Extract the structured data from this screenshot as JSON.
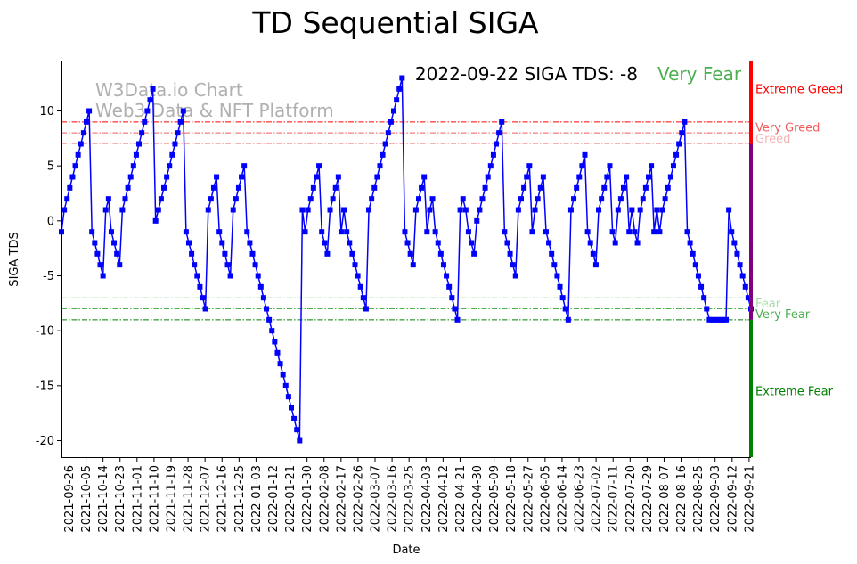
{
  "chart_data": {
    "type": "line",
    "title": "TD Sequential SIGA",
    "xlabel": "Date",
    "ylabel": "SIGA TDS",
    "ylim": [
      -21.5,
      14.5
    ],
    "yticks": [
      10,
      5,
      0,
      -5,
      -10,
      -15,
      -20
    ],
    "xticks": [
      "2021-09-26",
      "2021-10-05",
      "2021-10-14",
      "2021-10-23",
      "2021-11-01",
      "2021-11-10",
      "2021-11-19",
      "2021-11-28",
      "2021-12-07",
      "2021-12-16",
      "2021-12-25",
      "2022-01-03",
      "2022-01-12",
      "2022-01-21",
      "2022-01-30",
      "2022-02-08",
      "2022-02-17",
      "2022-02-26",
      "2022-03-07",
      "2022-03-16",
      "2022-03-25",
      "2022-04-03",
      "2022-04-12",
      "2022-04-21",
      "2022-04-30",
      "2022-05-09",
      "2022-05-18",
      "2022-05-27",
      "2022-06-05",
      "2022-06-14",
      "2022-06-23",
      "2022-07-02",
      "2022-07-11",
      "2022-07-20",
      "2022-07-29",
      "2022-08-07",
      "2022-08-16",
      "2022-08-25",
      "2022-09-03",
      "2022-09-12",
      "2022-09-21"
    ],
    "start_date": "2021-09-22",
    "end_date": "2022-09-22",
    "series": [
      {
        "name": "SIGA TDS",
        "color": "#0000ff",
        "start_date": "2021-09-22",
        "values": [
          -1,
          1,
          2,
          3,
          4,
          5,
          6,
          7,
          8,
          9,
          10,
          -1,
          -2,
          -3,
          -4,
          -5,
          1,
          2,
          -1,
          -2,
          -3,
          -4,
          1,
          2,
          3,
          4,
          5,
          6,
          7,
          8,
          9,
          10,
          11,
          12,
          0,
          1,
          2,
          3,
          4,
          5,
          6,
          7,
          8,
          9,
          10,
          -1,
          -2,
          -3,
          -4,
          -5,
          -6,
          -7,
          -8,
          1,
          2,
          3,
          4,
          -1,
          -2,
          -3,
          -4,
          -5,
          1,
          2,
          3,
          4,
          5,
          -1,
          -2,
          -3,
          -4,
          -5,
          -6,
          -7,
          -8,
          -9,
          -10,
          -11,
          -12,
          -13,
          -14,
          -15,
          -16,
          -17,
          -18,
          -19,
          -20,
          1,
          -1,
          1,
          2,
          3,
          4,
          5,
          -1,
          -2,
          -3,
          1,
          2,
          3,
          4,
          -1,
          1,
          -1,
          -2,
          -3,
          -4,
          -5,
          -6,
          -7,
          -8,
          1,
          2,
          3,
          4,
          5,
          6,
          7,
          8,
          9,
          10,
          11,
          12,
          13,
          -1,
          -2,
          -3,
          -4,
          1,
          2,
          3,
          4,
          -1,
          1,
          2,
          -1,
          -2,
          -3,
          -4,
          -5,
          -6,
          -7,
          -8,
          -9,
          1,
          2,
          1,
          -1,
          -2,
          -3,
          0,
          1,
          2,
          3,
          4,
          5,
          6,
          7,
          8,
          9,
          -1,
          -2,
          -3,
          -4,
          -5,
          1,
          2,
          3,
          4,
          5,
          -1,
          1,
          2,
          3,
          4,
          -1,
          -2,
          -3,
          -4,
          -5,
          -6,
          -7,
          -8,
          -9,
          1,
          2,
          3,
          4,
          5,
          6,
          -1,
          -2,
          -3,
          -4,
          1,
          2,
          3,
          4,
          5,
          -1,
          -2,
          1,
          2,
          3,
          4,
          -1,
          1,
          -1,
          -2,
          1,
          2,
          3,
          4,
          5,
          -1,
          1,
          -1,
          1,
          2,
          3,
          4,
          5,
          6,
          7,
          8,
          9,
          -1,
          -2,
          -3,
          -4,
          -5,
          -6,
          -7,
          -8,
          -9,
          -9,
          -9,
          -9,
          -9,
          -9,
          -9,
          1,
          -1,
          -2,
          -3,
          -4,
          -5,
          -6,
          -7,
          -8
        ]
      }
    ],
    "reference_lines": [
      {
        "value": 9,
        "label": "Extreme Greed",
        "color": "#ff0000"
      },
      {
        "value": 8,
        "label": "Very Greed",
        "color": "#f25c5c"
      },
      {
        "value": 7,
        "label": "Greed",
        "color": "#f5b3b3"
      },
      {
        "value": -7,
        "label": "Fear",
        "color": "#a8dca8"
      },
      {
        "value": -8,
        "label": "Very Fear",
        "color": "#4caf50"
      },
      {
        "value": -9,
        "label": "Extreme Fear",
        "color": "#008000"
      }
    ],
    "side_bar_segments": [
      {
        "from": 14.5,
        "to": 7,
        "color": "#ff0000"
      },
      {
        "from": 7,
        "to": -9,
        "color": "#800080"
      },
      {
        "from": -9,
        "to": -21.5,
        "color": "#008000"
      }
    ],
    "side_labels": [
      {
        "text": "Extreme Greed",
        "value": 12,
        "color": "#ff0000"
      },
      {
        "text": "Very Greed",
        "value": 8.5,
        "color": "#f25c5c"
      },
      {
        "text": "Greed",
        "value": 7.5,
        "color": "#f5b3b3"
      },
      {
        "text": "Fear",
        "value": -7.5,
        "color": "#a8dca8"
      },
      {
        "text": "Very Fear",
        "value": -8.5,
        "color": "#4caf50"
      },
      {
        "text": "Extreme Fear",
        "value": -15.5,
        "color": "#008000"
      }
    ],
    "annotation": {
      "text": "2022-09-22 SIGA TDS: -8",
      "status": "Very Fear",
      "status_color": "#4caf50"
    },
    "watermark": [
      "W3Data.io Chart",
      "Web3 Data & NFT Platform"
    ]
  }
}
